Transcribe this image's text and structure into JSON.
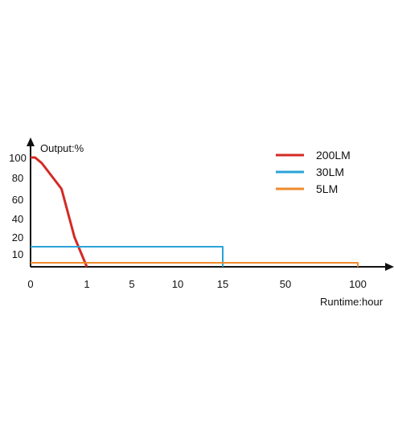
{
  "chart_data": {
    "type": "line",
    "ylabel": "Output:%",
    "xlabel": "Runtime:hour",
    "x_ticks": [
      "0",
      "1",
      "5",
      "10",
      "15",
      "50",
      "100"
    ],
    "y_ticks": [
      "100",
      "80",
      "60",
      "40",
      "20",
      "10"
    ],
    "series": [
      {
        "name": "200LM",
        "color": "#d42a24",
        "points": [
          {
            "x": 0,
            "y": 100
          },
          {
            "x": 0.08,
            "y": 100
          },
          {
            "x": 0.2,
            "y": 94
          },
          {
            "x": 0.55,
            "y": 70
          },
          {
            "x": 0.78,
            "y": 20
          },
          {
            "x": 1,
            "y": 0
          }
        ]
      },
      {
        "name": "30LM",
        "color": "#2aa3d8",
        "points": [
          {
            "x": 0,
            "y": 15
          },
          {
            "x": 15,
            "y": 15
          },
          {
            "x": 15,
            "y": 0
          }
        ]
      },
      {
        "name": "5LM",
        "color": "#ef8a2c",
        "points": [
          {
            "x": 0,
            "y": 5
          },
          {
            "x": 100,
            "y": 5
          },
          {
            "x": 100,
            "y": 0
          }
        ]
      }
    ],
    "legend_position": "top-right"
  }
}
